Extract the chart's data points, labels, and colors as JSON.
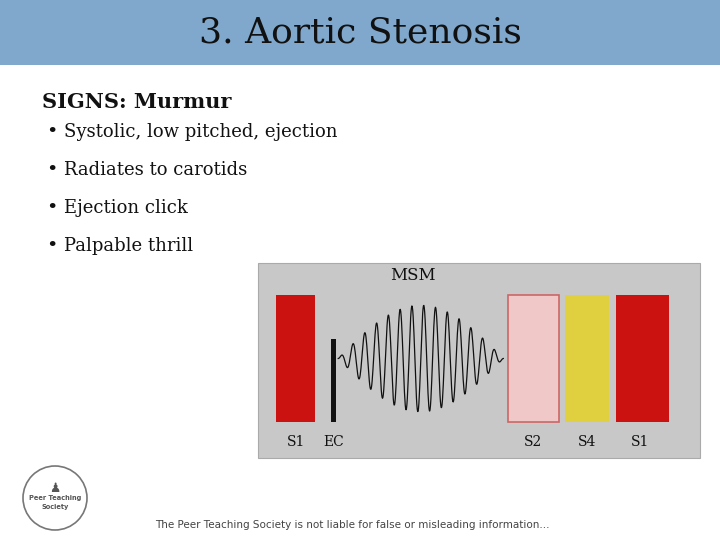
{
  "title": "3. Aortic Stenosis",
  "title_bg_color": "#7fa8cc",
  "title_fontsize": 26,
  "title_font": "serif",
  "bg_color": "#ffffff",
  "heading": "SIGNS: Murmur",
  "heading_fontsize": 15,
  "bullets": [
    "Systolic, low pitched, ejection",
    "Radiates to carotids",
    "Ejection click",
    "Palpable thrill"
  ],
  "bullet_fontsize": 13,
  "bullet_font": "serif",
  "footer": "The Peer Teaching Society is not liable for false or misleading information...",
  "footer_fontsize": 7.5,
  "text_color": "#111111",
  "diagram_bg": "#c8c8c8",
  "s1_color": "#cc1111",
  "s2_color": "#f0c8c8",
  "s2_edge": "#cc6666",
  "s4_color": "#e0d040",
  "s4_edge": "#b0a820"
}
